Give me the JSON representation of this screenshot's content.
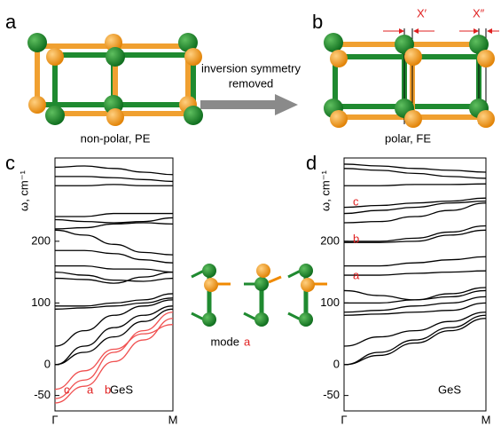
{
  "figure": {
    "panel_a": "a",
    "panel_b": "b",
    "caption_a": "non-polar, PE",
    "caption_b": "polar, FE",
    "arrow_text_1": "inversion symmetry",
    "arrow_text_2": "removed",
    "shift_1": "X′",
    "shift_2": "X″",
    "mode_text": "mode",
    "mode_letter": "a"
  },
  "chart_data": [
    {
      "type": "line",
      "panel": "c",
      "label": "GeS",
      "ylabel": "ω, cm⁻¹",
      "x": [
        0,
        0.25,
        0.5,
        0.75,
        1
      ],
      "xlim": [
        0,
        1
      ],
      "xticks": [
        {
          "value": 0,
          "label": "Γ"
        },
        {
          "value": 1,
          "label": "M"
        }
      ],
      "ylim": [
        -75,
        335
      ],
      "yticks": [
        -50,
        0,
        100,
        200
      ],
      "series": [
        {
          "color": "#000000",
          "values": [
            320,
            322,
            318,
            312,
            308
          ]
        },
        {
          "color": "#000000",
          "values": [
            305,
            305,
            303,
            300,
            297
          ]
        },
        {
          "color": "#000000",
          "values": [
            290,
            290,
            292,
            290,
            290
          ]
        },
        {
          "color": "#000000",
          "values": [
            240,
            240,
            245,
            245,
            245
          ]
        },
        {
          "color": "#000000",
          "values": [
            235,
            232,
            230,
            232,
            238
          ]
        },
        {
          "color": "#000000",
          "values": [
            220,
            222,
            228,
            230,
            228
          ]
        },
        {
          "color": "#000000",
          "values": [
            218,
            210,
            195,
            182,
            178
          ]
        },
        {
          "color": "#000000",
          "values": [
            185,
            185,
            180,
            170,
            165
          ]
        },
        {
          "color": "#000000",
          "values": [
            160,
            160,
            155,
            155,
            150
          ]
        },
        {
          "color": "#000000",
          "values": [
            140,
            138,
            132,
            142,
            150
          ]
        },
        {
          "color": "#000000",
          "values": [
            150,
            145,
            137,
            135,
            140
          ]
        },
        {
          "color": "#000000",
          "values": [
            95,
            95,
            100,
            105,
            115
          ]
        },
        {
          "color": "#000000",
          "values": [
            90,
            92,
            95,
            100,
            108
          ]
        },
        {
          "color": "#000000",
          "values": [
            30,
            55,
            80,
            95,
            105
          ]
        },
        {
          "color": "#000000",
          "values": [
            0,
            30,
            60,
            80,
            95
          ]
        },
        {
          "color": "#000000",
          "values": [
            0,
            20,
            45,
            70,
            90
          ]
        },
        {
          "color": "#f05050",
          "values": [
            -40,
            -10,
            25,
            50,
            65
          ]
        },
        {
          "color": "#f05050",
          "values": [
            -55,
            -25,
            20,
            55,
            85
          ]
        },
        {
          "color": "#f05050",
          "values": [
            -62,
            -35,
            5,
            40,
            75
          ]
        }
      ],
      "annotations": [
        "c",
        "a",
        "b"
      ]
    },
    {
      "type": "line",
      "panel": "d",
      "label": "GeS",
      "ylabel": "ω, cm⁻¹",
      "x": [
        0,
        0.25,
        0.5,
        0.75,
        1
      ],
      "xlim": [
        0,
        1
      ],
      "xticks": [
        {
          "value": 0,
          "label": "Γ"
        },
        {
          "value": 1,
          "label": "M"
        }
      ],
      "ylim": [
        -75,
        335
      ],
      "yticks": [
        -50,
        0,
        100,
        200
      ],
      "series": [
        {
          "color": "#000000",
          "values": [
            325,
            322,
            318,
            315,
            312
          ]
        },
        {
          "color": "#000000",
          "values": [
            318,
            315,
            310,
            305,
            302
          ]
        },
        {
          "color": "#000000",
          "values": [
            290,
            290,
            292,
            292,
            293
          ]
        },
        {
          "color": "#000000",
          "values": [
            255,
            258,
            262,
            265,
            270
          ]
        },
        {
          "color": "#000000",
          "values": [
            245,
            250,
            255,
            262,
            265
          ]
        },
        {
          "color": "#000000",
          "values": [
            230,
            232,
            240,
            250,
            262
          ]
        },
        {
          "color": "#000000",
          "values": [
            200,
            200,
            205,
            215,
            225
          ]
        },
        {
          "color": "#000000",
          "values": [
            198,
            198,
            200,
            210,
            218
          ]
        },
        {
          "color": "#000000",
          "values": [
            160,
            160,
            165,
            170,
            175
          ]
        },
        {
          "color": "#000000",
          "values": [
            145,
            145,
            148,
            150,
            152
          ]
        },
        {
          "color": "#000000",
          "values": [
            120,
            112,
            105,
            110,
            120
          ]
        },
        {
          "color": "#000000",
          "values": [
            100,
            100,
            105,
            115,
            125
          ]
        },
        {
          "color": "#000000",
          "values": [
            85,
            88,
            95,
            100,
            110
          ]
        },
        {
          "color": "#000000",
          "values": [
            80,
            82,
            85,
            88,
            100
          ]
        },
        {
          "color": "#000000",
          "values": [
            30,
            45,
            55,
            70,
            85
          ]
        },
        {
          "color": "#000000",
          "values": [
            0,
            20,
            40,
            60,
            80
          ]
        },
        {
          "color": "#000000",
          "values": [
            0,
            15,
            35,
            55,
            75
          ]
        }
      ],
      "annotations": [
        "c",
        "b",
        "a"
      ]
    }
  ]
}
